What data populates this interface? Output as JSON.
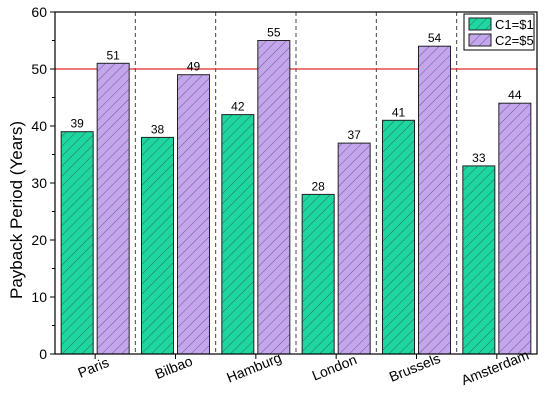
{
  "chart_data": {
    "type": "bar",
    "title": "",
    "xlabel": "",
    "ylabel": "Payback Period (Years)",
    "ylim": [
      0,
      60
    ],
    "yticks": [
      0,
      10,
      20,
      30,
      40,
      50,
      60
    ],
    "categories": [
      "Paris",
      "Bilbao",
      "Hamburg",
      "London",
      "Brussels",
      "Amsterdam"
    ],
    "series": [
      {
        "name": "C1=$1",
        "values": [
          39,
          38,
          42,
          28,
          41,
          33
        ],
        "color": "#1ed6a0",
        "hatch": "diagonal"
      },
      {
        "name": "C2=$5",
        "values": [
          51,
          49,
          55,
          37,
          54,
          44
        ],
        "color": "#c3a6ec",
        "hatch": "diagonal"
      }
    ],
    "reference_line": {
      "value": 50,
      "color": "#e0282c"
    },
    "grid": false,
    "category_separators": "dashed",
    "legend_position": "top-right"
  }
}
